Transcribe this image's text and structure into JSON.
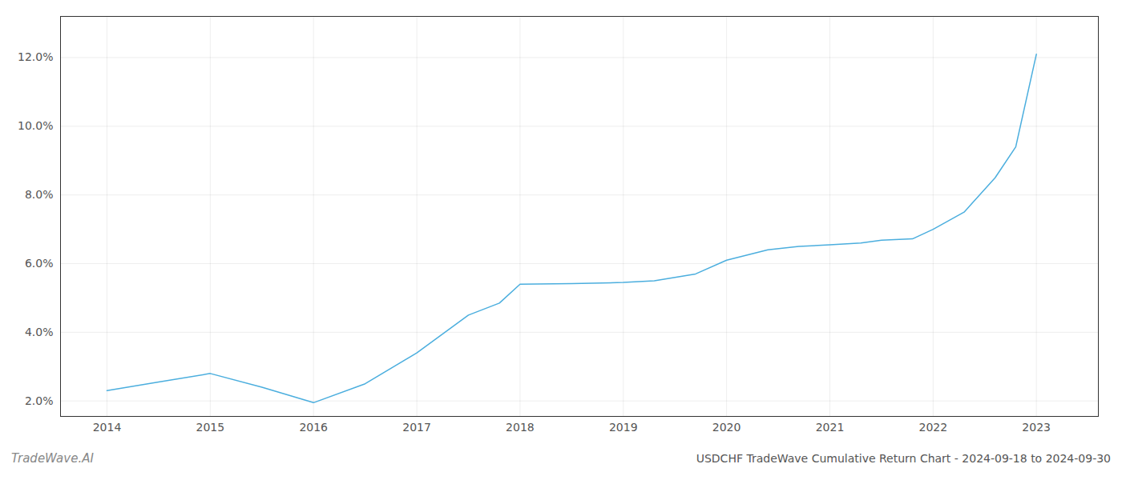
{
  "chart_data": {
    "type": "line",
    "title": "USDCHF TradeWave Cumulative Return Chart - 2024-09-18 to 2024-09-30",
    "annotations": [
      "TradeWave.AI"
    ],
    "x": [
      2014,
      2014.5,
      2015,
      2015.5,
      2016,
      2016.5,
      2017,
      2017.5,
      2017.8,
      2018,
      2018.5,
      2019,
      2019.3,
      2019.7,
      2020,
      2020.4,
      2020.7,
      2021,
      2021.3,
      2021.5,
      2021.8,
      2022,
      2022.3,
      2022.6,
      2022.8,
      2023
    ],
    "values": [
      2.3,
      2.55,
      2.8,
      2.4,
      1.95,
      2.5,
      3.4,
      4.5,
      4.85,
      5.4,
      5.42,
      5.45,
      5.5,
      5.7,
      6.1,
      6.4,
      6.5,
      6.55,
      6.6,
      6.68,
      6.72,
      7.0,
      7.5,
      8.5,
      9.4,
      12.1
    ],
    "color": "#4baede",
    "xlim": [
      2013.55,
      2023.6
    ],
    "xticks": [
      2014,
      2015,
      2016,
      2017,
      2018,
      2019,
      2020,
      2021,
      2022,
      2023
    ],
    "ylim": [
      1.55,
      13.2
    ],
    "yticks": [
      {
        "value": 2.0,
        "label": "2.0%"
      },
      {
        "value": 4.0,
        "label": "4.0%"
      },
      {
        "value": 6.0,
        "label": "6.0%"
      },
      {
        "value": 8.0,
        "label": "8.0%"
      },
      {
        "value": 10.0,
        "label": "10.0%"
      },
      {
        "value": 12.0,
        "label": "12.0%"
      }
    ],
    "grid": true
  }
}
